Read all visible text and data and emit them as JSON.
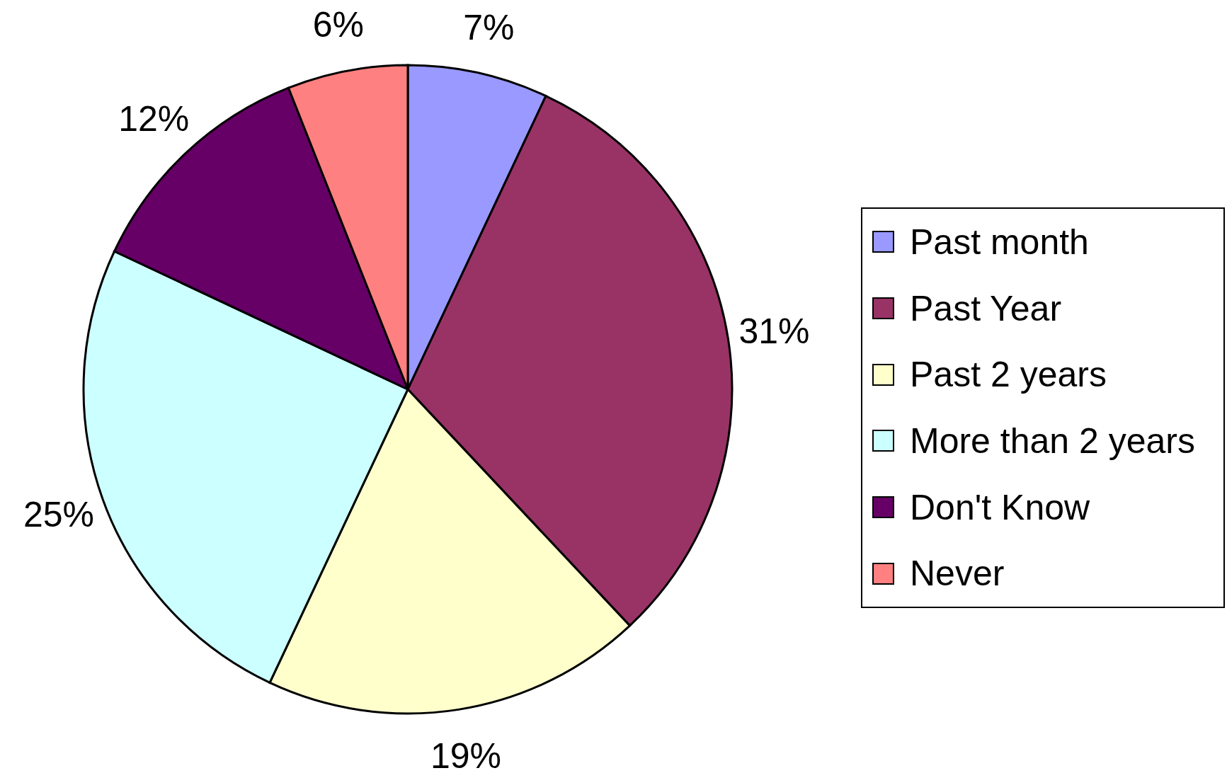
{
  "chart_data": {
    "type": "pie",
    "categories": [
      "Past month",
      "Past Year",
      "Past 2 years",
      "More than 2 years",
      "Don't Know",
      "Never"
    ],
    "values": [
      7,
      31,
      19,
      25,
      12,
      6
    ],
    "colors": [
      "#9999ff",
      "#993366",
      "#ffffcc",
      "#ccffff",
      "#660066",
      "#ff8080"
    ],
    "value_labels": [
      "7%",
      "31%",
      "19%",
      "25%",
      "12%",
      "6%"
    ],
    "legend": "right"
  }
}
